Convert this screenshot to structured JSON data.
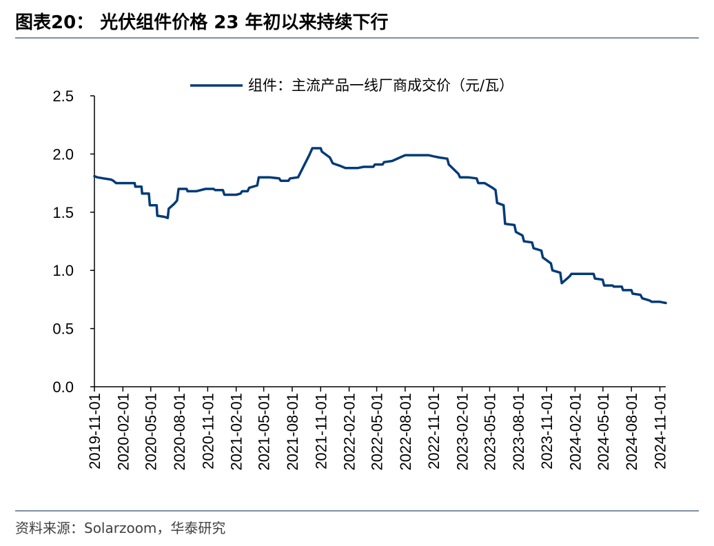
{
  "header": {
    "title": "图表20：  光伏组件价格 23 年初以来持续下行"
  },
  "footer": {
    "source": "资料来源：Solarzoom，华泰研究"
  },
  "colors": {
    "line": "#003a78",
    "rule": "#7d8fa3"
  },
  "chart_data": {
    "type": "line",
    "title": "",
    "xlabel": "",
    "ylabel": "",
    "ylim": [
      0,
      2.5
    ],
    "yticks": [
      "0.0",
      "0.5",
      "1.0",
      "1.5",
      "2.0",
      "2.5"
    ],
    "x_range": [
      "2019-11-01",
      "2024-11-20"
    ],
    "xticks": [
      "2019-11-01",
      "2020-02-01",
      "2020-05-01",
      "2020-08-01",
      "2020-11-01",
      "2021-02-01",
      "2021-05-01",
      "2021-08-01",
      "2021-11-01",
      "2022-02-01",
      "2022-05-01",
      "2022-08-01",
      "2022-11-01",
      "2023-02-01",
      "2023-05-01",
      "2023-08-01",
      "2023-11-01",
      "2024-02-01",
      "2024-05-01",
      "2024-08-01",
      "2024-11-01"
    ],
    "grid": false,
    "legend": "top",
    "series": [
      {
        "name": "组件：主流产品一线厂商成交价（元/瓦）",
        "points": [
          [
            "2019-11-01",
            1.81
          ],
          [
            "2019-11-10",
            1.8
          ],
          [
            "2019-12-01",
            1.79
          ],
          [
            "2019-12-25",
            1.78
          ],
          [
            "2020-01-01",
            1.77
          ],
          [
            "2020-01-10",
            1.75
          ],
          [
            "2020-02-01",
            1.75
          ],
          [
            "2020-03-10",
            1.75
          ],
          [
            "2020-03-12",
            1.72
          ],
          [
            "2020-04-01",
            1.72
          ],
          [
            "2020-04-03",
            1.66
          ],
          [
            "2020-04-25",
            1.66
          ],
          [
            "2020-04-28",
            1.56
          ],
          [
            "2020-05-20",
            1.56
          ],
          [
            "2020-05-22",
            1.47
          ],
          [
            "2020-06-15",
            1.46
          ],
          [
            "2020-06-25",
            1.45
          ],
          [
            "2020-06-28",
            1.53
          ],
          [
            "2020-07-15",
            1.57
          ],
          [
            "2020-07-25",
            1.6
          ],
          [
            "2020-07-30",
            1.7
          ],
          [
            "2020-08-25",
            1.7
          ],
          [
            "2020-08-28",
            1.68
          ],
          [
            "2020-09-25",
            1.68
          ],
          [
            "2020-10-25",
            1.7
          ],
          [
            "2020-11-20",
            1.7
          ],
          [
            "2020-11-25",
            1.69
          ],
          [
            "2020-12-20",
            1.69
          ],
          [
            "2020-12-25",
            1.65
          ],
          [
            "2021-02-01",
            1.65
          ],
          [
            "2021-02-15",
            1.66
          ],
          [
            "2021-02-20",
            1.68
          ],
          [
            "2021-03-10",
            1.68
          ],
          [
            "2021-03-15",
            1.71
          ],
          [
            "2021-04-10",
            1.73
          ],
          [
            "2021-04-15",
            1.8
          ],
          [
            "2021-05-20",
            1.8
          ],
          [
            "2021-06-20",
            1.79
          ],
          [
            "2021-06-25",
            1.77
          ],
          [
            "2021-07-20",
            1.77
          ],
          [
            "2021-07-25",
            1.79
          ],
          [
            "2021-08-20",
            1.8
          ],
          [
            "2021-09-25",
            1.99
          ],
          [
            "2021-10-05",
            2.05
          ],
          [
            "2021-11-01",
            2.05
          ],
          [
            "2021-11-05",
            2.02
          ],
          [
            "2021-12-01",
            1.97
          ],
          [
            "2021-12-10",
            1.92
          ],
          [
            "2022-01-01",
            1.9
          ],
          [
            "2022-01-20",
            1.88
          ],
          [
            "2022-03-01",
            1.88
          ],
          [
            "2022-03-20",
            1.89
          ],
          [
            "2022-04-20",
            1.89
          ],
          [
            "2022-04-25",
            1.91
          ],
          [
            "2022-05-20",
            1.91
          ],
          [
            "2022-05-25",
            1.93
          ],
          [
            "2022-06-20",
            1.94
          ],
          [
            "2022-07-15",
            1.97
          ],
          [
            "2022-08-01",
            1.99
          ],
          [
            "2022-10-15",
            1.99
          ],
          [
            "2022-11-01",
            1.98
          ],
          [
            "2022-11-20",
            1.97
          ],
          [
            "2022-12-15",
            1.96
          ],
          [
            "2022-12-20",
            1.91
          ],
          [
            "2023-01-20",
            1.83
          ],
          [
            "2023-01-25",
            1.8
          ],
          [
            "2023-02-20",
            1.8
          ],
          [
            "2023-03-20",
            1.79
          ],
          [
            "2023-03-25",
            1.75
          ],
          [
            "2023-04-15",
            1.75
          ],
          [
            "2023-05-10",
            1.71
          ],
          [
            "2023-05-20",
            1.69
          ],
          [
            "2023-05-25",
            1.58
          ],
          [
            "2023-06-15",
            1.56
          ],
          [
            "2023-06-20",
            1.4
          ],
          [
            "2023-07-20",
            1.39
          ],
          [
            "2023-07-25",
            1.33
          ],
          [
            "2023-08-15",
            1.3
          ],
          [
            "2023-08-20",
            1.25
          ],
          [
            "2023-09-15",
            1.24
          ],
          [
            "2023-09-20",
            1.19
          ],
          [
            "2023-10-15",
            1.17
          ],
          [
            "2023-10-20",
            1.11
          ],
          [
            "2023-11-15",
            1.06
          ],
          [
            "2023-11-20",
            1.0
          ],
          [
            "2023-12-15",
            0.98
          ],
          [
            "2023-12-20",
            0.89
          ],
          [
            "2024-01-15",
            0.95
          ],
          [
            "2024-01-20",
            0.97
          ],
          [
            "2024-04-01",
            0.97
          ],
          [
            "2024-04-05",
            0.93
          ],
          [
            "2024-04-30",
            0.92
          ],
          [
            "2024-05-05",
            0.87
          ],
          [
            "2024-06-01",
            0.87
          ],
          [
            "2024-06-05",
            0.86
          ],
          [
            "2024-07-01",
            0.86
          ],
          [
            "2024-07-05",
            0.83
          ],
          [
            "2024-08-01",
            0.83
          ],
          [
            "2024-08-05",
            0.8
          ],
          [
            "2024-08-30",
            0.79
          ],
          [
            "2024-09-05",
            0.76
          ],
          [
            "2024-09-30",
            0.74
          ],
          [
            "2024-10-05",
            0.73
          ],
          [
            "2024-11-01",
            0.73
          ],
          [
            "2024-11-20",
            0.72
          ]
        ]
      }
    ]
  }
}
